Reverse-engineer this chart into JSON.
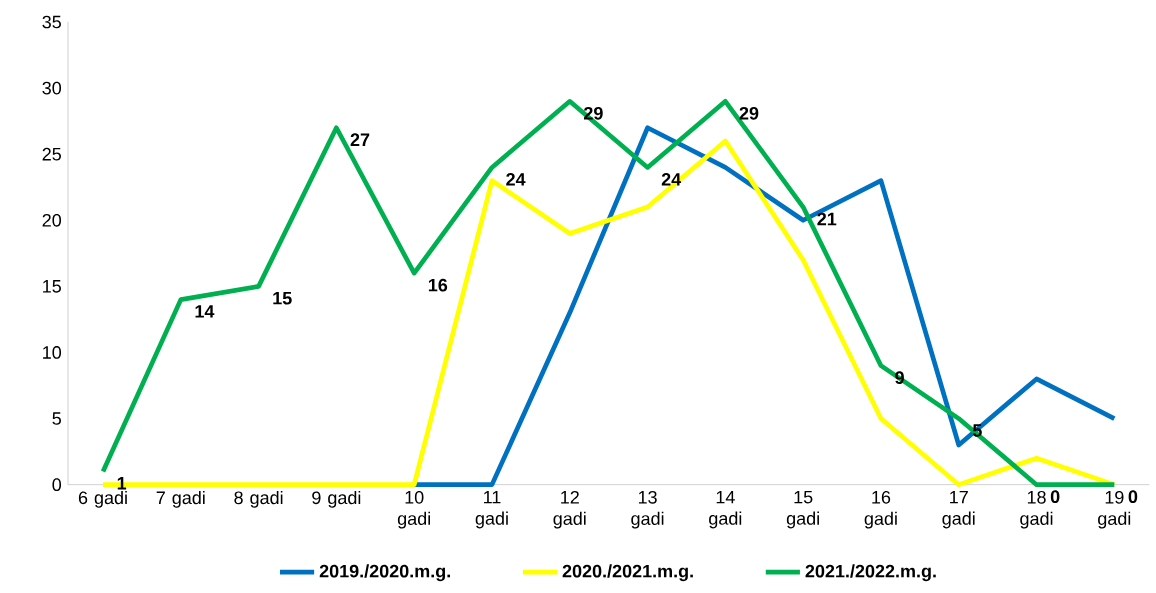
{
  "chart_data": {
    "type": "line",
    "categories": [
      "6 gadi",
      "7 gadi",
      "8 gadi",
      "9 gadi",
      "10 gadi",
      "11 gadi",
      "12 gadi",
      "13 gadi",
      "14 gadi",
      "15 gadi",
      "16 gadi",
      "17 gadi",
      "18 gadi",
      "19 gadi"
    ],
    "series": [
      {
        "name": "2019./2020.m.g.",
        "color": "#0070c0",
        "values": [
          null,
          null,
          null,
          null,
          0,
          0,
          13,
          27,
          24,
          20,
          23,
          3,
          8,
          5
        ]
      },
      {
        "name": "2020./2021.m.g.",
        "color": "#ffff00",
        "values": [
          0,
          0,
          0,
          0,
          0,
          23,
          19,
          21,
          26,
          17,
          5,
          0,
          2,
          0
        ]
      },
      {
        "name": "2021./2022.m.g.",
        "color": "#00b050",
        "values": [
          1,
          14,
          15,
          27,
          16,
          24,
          29,
          24,
          29,
          21,
          9,
          5,
          0,
          0
        ],
        "value_labels": [
          "1",
          "14",
          "15",
          "27",
          "16",
          "24",
          "29",
          "24",
          "29",
          "21",
          "9",
          "5",
          "0",
          "0"
        ]
      }
    ],
    "ylim": [
      0,
      35
    ],
    "yticks": [
      0,
      5,
      10,
      15,
      20,
      25,
      30,
      35
    ],
    "legend": "bottom",
    "grid": false,
    "marker": "none",
    "line_style": "solid"
  }
}
